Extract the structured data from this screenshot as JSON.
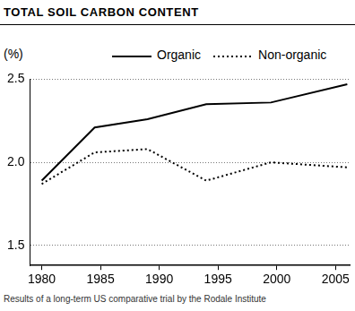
{
  "chart_data": {
    "type": "line",
    "title": "TOTAL SOIL CARBON CONTENT",
    "ylabel": "(%)",
    "caption": "Results of a long-term US comparative trial by the Rodale Institute",
    "x": [
      1980,
      1984.5,
      1989,
      1994,
      1999.5,
      2006
    ],
    "series": [
      {
        "name": "Organic",
        "color": "#000000",
        "line_style": "solid",
        "values": [
          1.89,
          2.21,
          2.26,
          2.35,
          2.36,
          2.47
        ]
      },
      {
        "name": "Non-organic",
        "color": "#000000",
        "line_style": "dotted",
        "values": [
          1.87,
          2.06,
          2.08,
          1.89,
          2.0,
          1.97
        ]
      }
    ],
    "xlim": [
      1979,
      2006.2
    ],
    "xticks": [
      1980,
      1985,
      1990,
      1995,
      2000,
      2005
    ],
    "ylim": [
      1.38,
      2.5
    ],
    "yticks": [
      1.5,
      {
        "value": 2,
        "label": "2.0"
      },
      2.5
    ],
    "grid": "y",
    "legend": "top"
  }
}
